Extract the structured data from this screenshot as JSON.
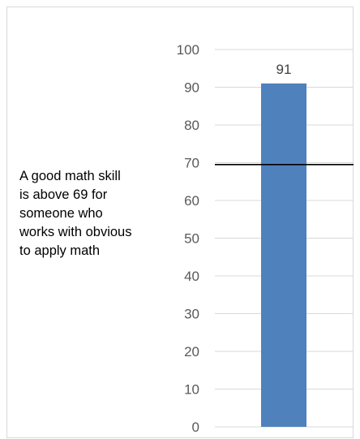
{
  "chart_data": {
    "type": "bar",
    "categories": [
      ""
    ],
    "values": [
      91
    ],
    "data_labels": [
      "91"
    ],
    "ylim": [
      0,
      100
    ],
    "yticks": [
      0,
      10,
      20,
      30,
      40,
      50,
      60,
      70,
      80,
      90,
      100
    ],
    "grid": true,
    "legend": "none",
    "reference_line": {
      "y": 69.5,
      "color": "#000000"
    },
    "colors": {
      "bar": "#4f81bd",
      "grid": "#d9d9d9",
      "tick_text": "#595959",
      "frame": "#d9d9d9"
    },
    "annotation_lines": [
      "A good math skill",
      "is above 69 for",
      "someone who",
      "works with obvious",
      "to apply math"
    ]
  }
}
